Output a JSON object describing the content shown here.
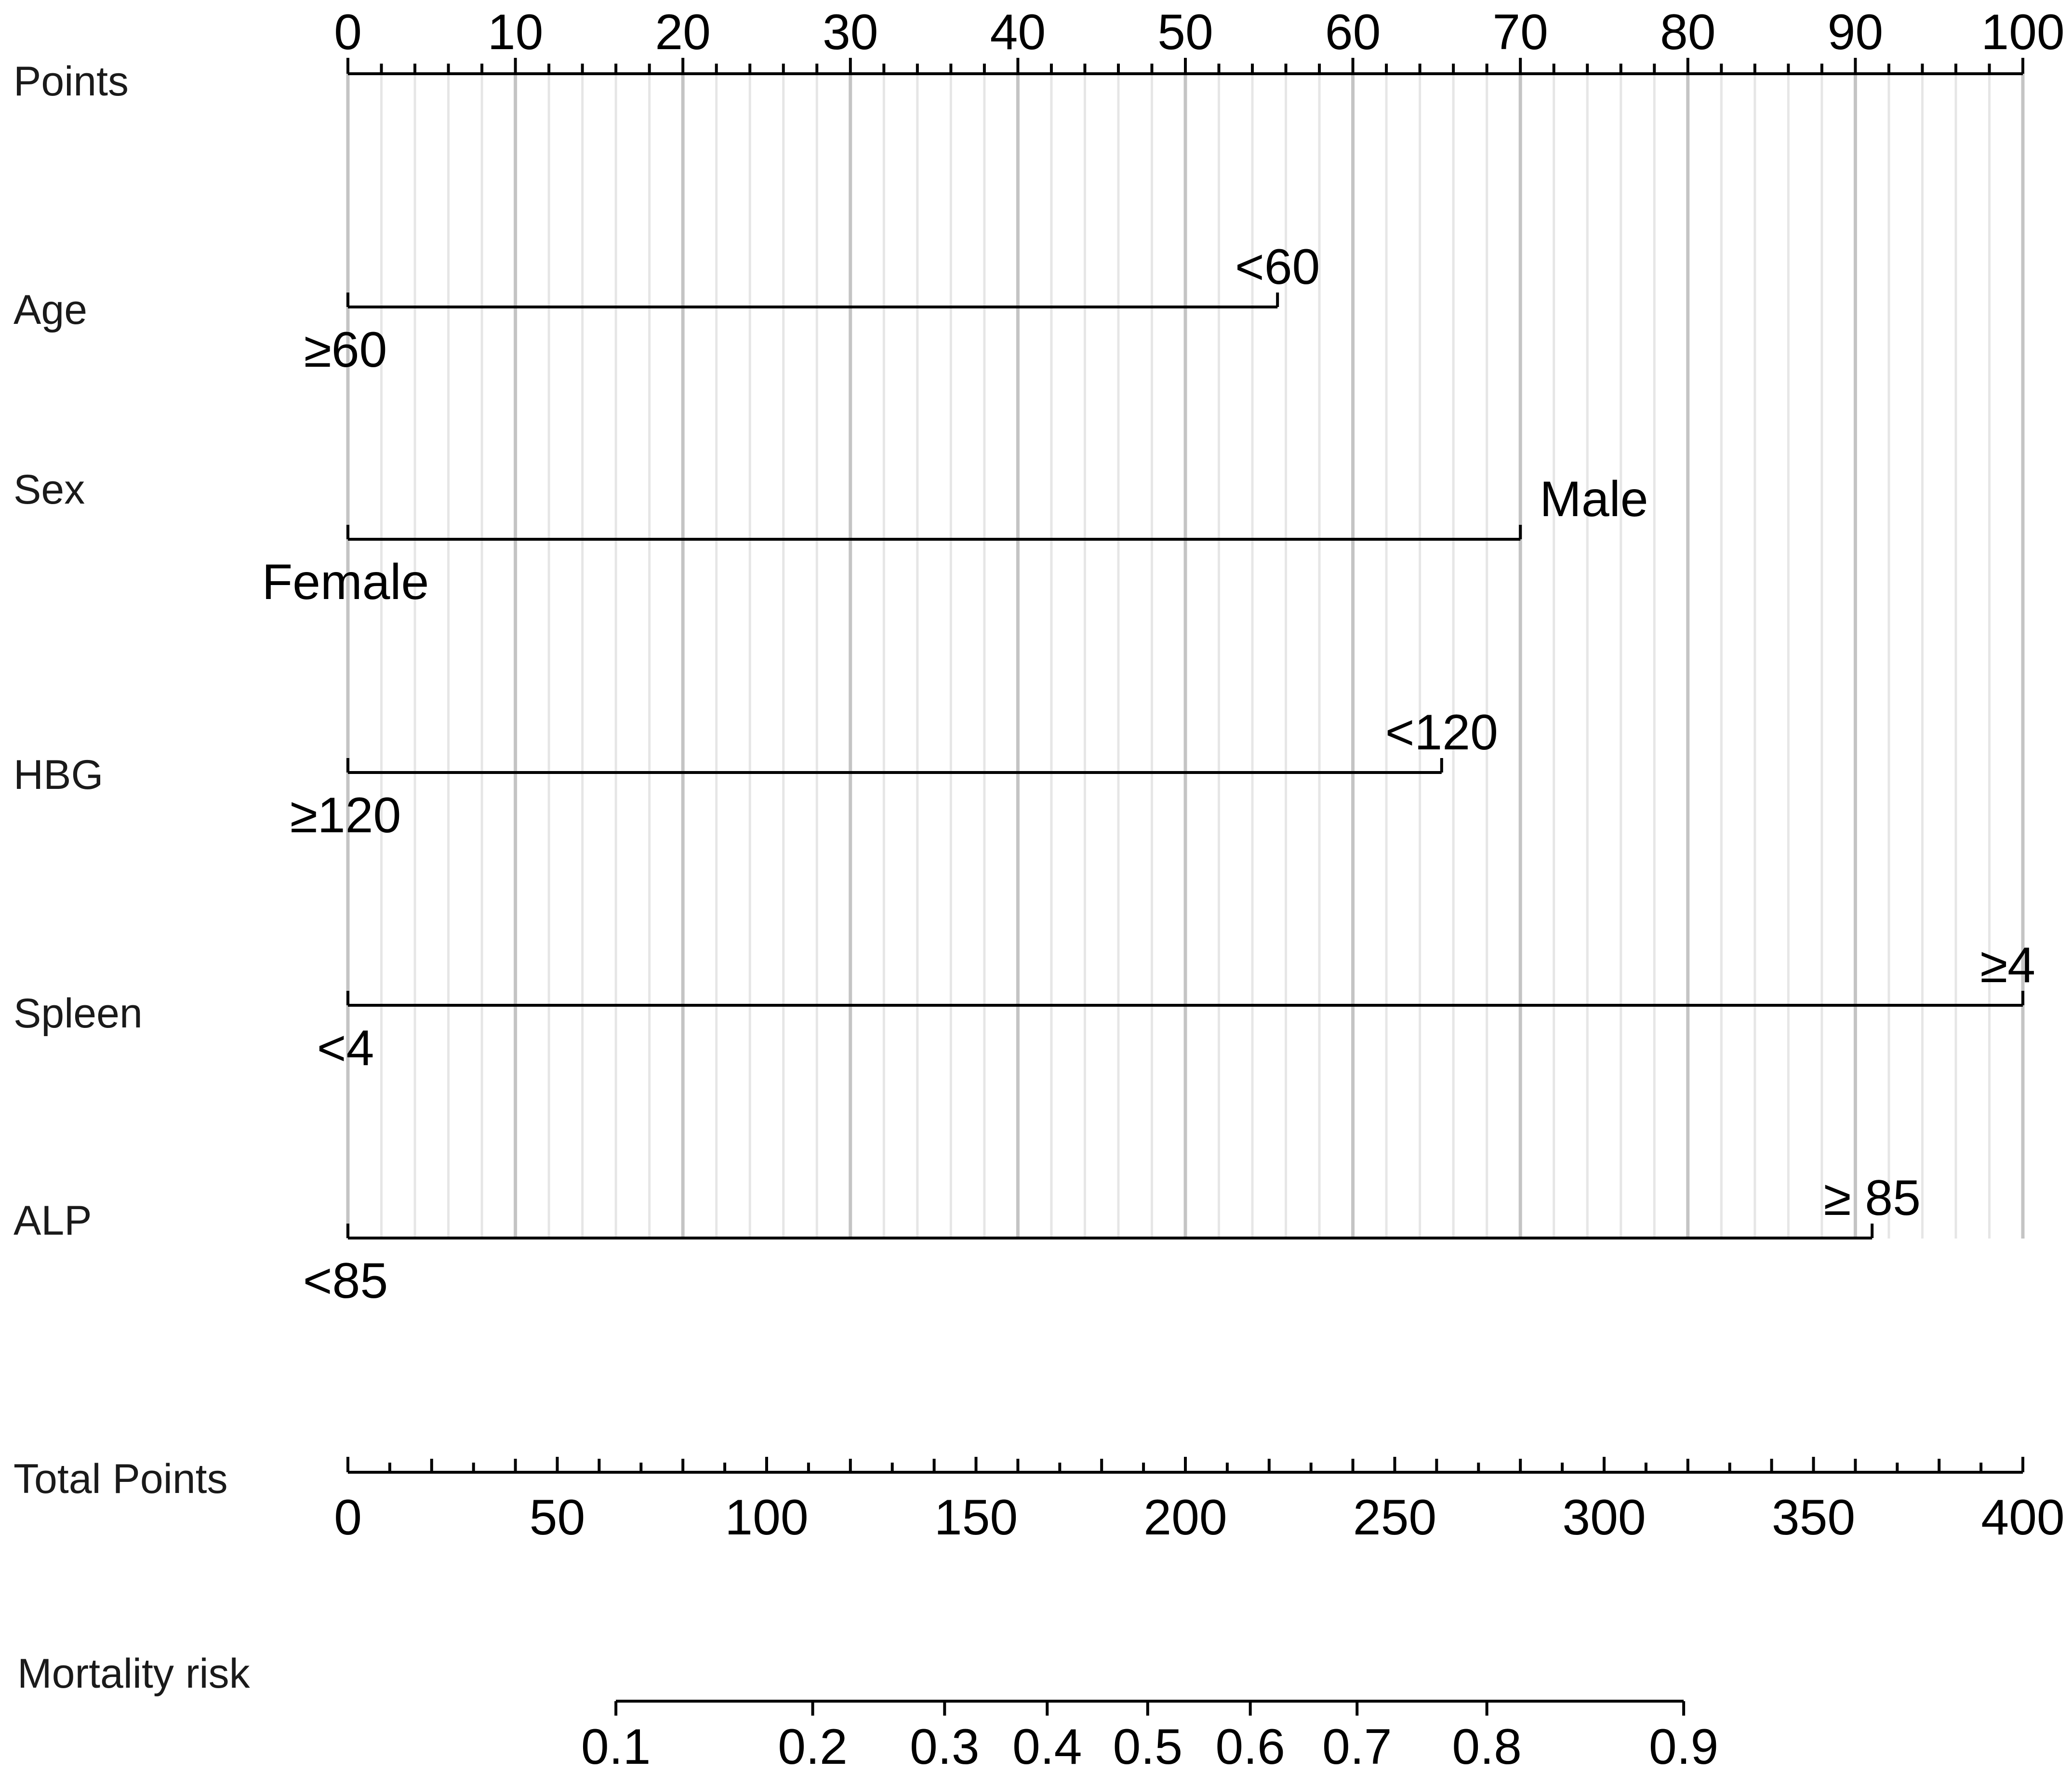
{
  "chart_data": {
    "type": "nomogram",
    "points_axis": {
      "label": "Points",
      "range": [
        0,
        100
      ],
      "ticks": [
        "0",
        "10",
        "20",
        "30",
        "40",
        "50",
        "60",
        "70",
        "80",
        "90",
        "100"
      ],
      "minor_step": 2
    },
    "variables": [
      {
        "name": "Age",
        "low_label": "≥60",
        "high_label": "<60",
        "low_points": 0,
        "high_points": 55.5
      },
      {
        "name": "Sex",
        "low_label": "Female",
        "high_label": "Male",
        "low_points": 0,
        "high_points": 70
      },
      {
        "name": "HBG",
        "low_label": "≥120",
        "high_label": "<120",
        "low_points": 0,
        "high_points": 65.3
      },
      {
        "name": "Spleen",
        "low_label": "<4",
        "high_label": "≥4",
        "low_points": 0,
        "high_points": 100
      },
      {
        "name": "ALP",
        "low_label": "<85",
        "high_label": "≥ 85",
        "low_points": 0,
        "high_points": 91
      }
    ],
    "total_points_axis": {
      "label": "Total Points",
      "range": [
        0,
        400
      ],
      "ticks": [
        "0",
        "50",
        "100",
        "150",
        "200",
        "250",
        "300",
        "350",
        "400"
      ],
      "minor_step": 10
    },
    "risk_axis": {
      "label": "Mortality risk",
      "ticks": [
        {
          "label": "0.1",
          "total_points": 64
        },
        {
          "label": "0.2",
          "total_points": 111
        },
        {
          "label": "0.3",
          "total_points": 142.5
        },
        {
          "label": "0.4",
          "total_points": 167
        },
        {
          "label": "0.5",
          "total_points": 191
        },
        {
          "label": "0.6",
          "total_points": 215.5
        },
        {
          "label": "0.7",
          "total_points": 241
        },
        {
          "label": "0.8",
          "total_points": 272
        },
        {
          "label": "0.9",
          "total_points": 319
        }
      ]
    },
    "grid": true
  }
}
